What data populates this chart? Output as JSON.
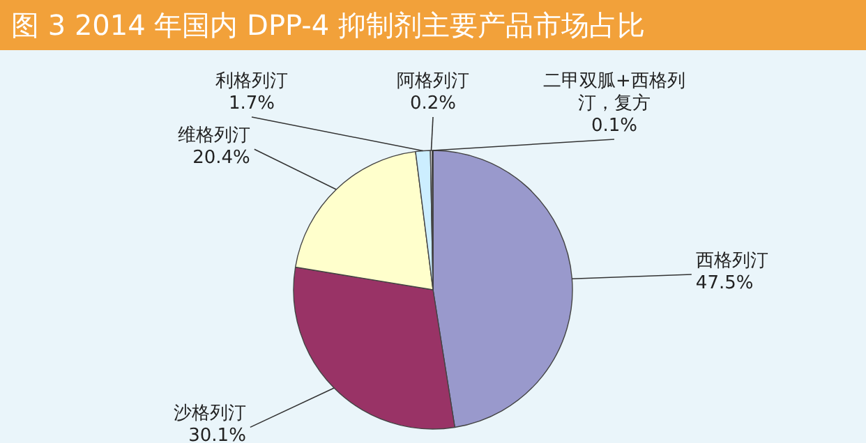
{
  "chart_data": {
    "type": "pie",
    "title": "图 3  2014 年国内 DPP-4 抑制剂主要产品市场占比",
    "categories": [
      "西格列汀",
      "沙格列汀",
      "维格列汀",
      "利格列汀",
      "阿格列汀",
      "二甲双胍+西格列汀，复方"
    ],
    "values": [
      47.5,
      30.1,
      20.4,
      1.7,
      0.2,
      0.1
    ],
    "colors": [
      "#9999cc",
      "#993366",
      "#ffffcc",
      "#cceeff",
      "#ffffff",
      "#e6f0ff"
    ],
    "value_labels": [
      "47.5%",
      "30.1%",
      "20.4%",
      "1.7%",
      "0.2%",
      "0.1%"
    ]
  }
}
